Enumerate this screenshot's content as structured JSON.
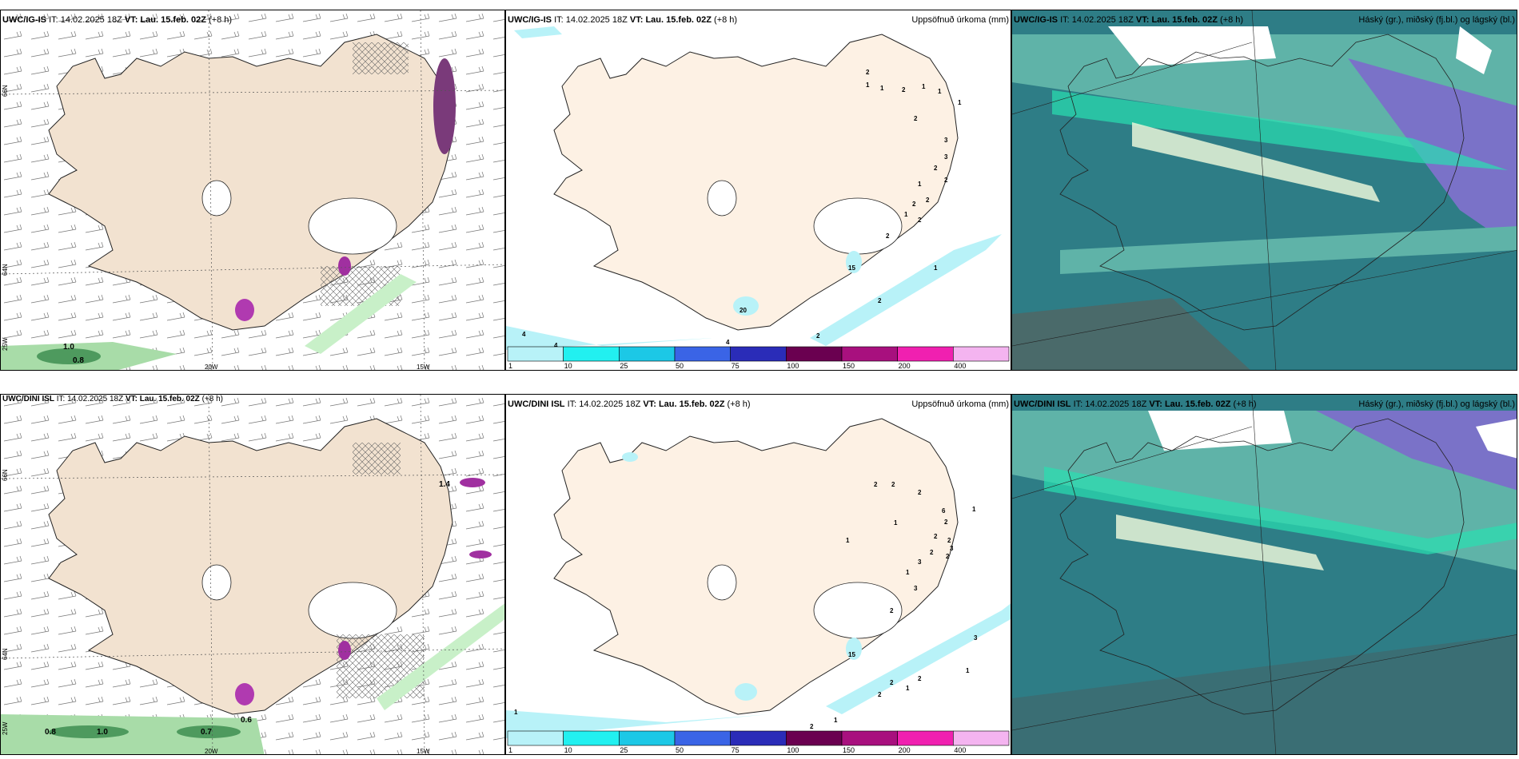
{
  "rows": [
    {
      "model": "UWC/IG-IS",
      "issue_prefix": "IT:",
      "issue_time": "14.02.2025 18Z",
      "valid_prefix": "VT:",
      "valid_time": "Lau. 15.feb. 02Z",
      "lead": "(+8 h)",
      "precip_title": "Uppsöfnuð úrkoma (mm)",
      "cloud_title": "Háský (gr.), miðský (fj.bl.) og lágský (bl.)",
      "wind_labels": [
        "1.0",
        "0.8"
      ],
      "precip_values": [
        "2",
        "1",
        "1",
        "2",
        "1",
        "1",
        "1",
        "2",
        "3",
        "3",
        "2",
        "2",
        "1",
        "2",
        "2",
        "2",
        "1",
        "2",
        "1",
        "15",
        "20",
        "2",
        "4",
        "4",
        "4",
        "2"
      ]
    },
    {
      "model": "UWC/DINI ISL",
      "issue_prefix": "IT:",
      "issue_time": "14.02.2025 18Z",
      "valid_prefix": "VT:",
      "valid_time": "Lau. 15.feb. 02Z",
      "lead": "(+8 h)",
      "precip_title": "Uppsöfnuð úrkoma (mm)",
      "cloud_title": "Háský (gr.), miðský (fj.bl.) og lágský (bl.)",
      "wind_labels": [
        "1.4",
        "0.8",
        "1.0",
        "0.7",
        "0.6"
      ],
      "precip_values": [
        "2",
        "2",
        "2",
        "1",
        "6",
        "1",
        "2",
        "1",
        "2",
        "2",
        "3",
        "2",
        "2",
        "3",
        "1",
        "3",
        "15",
        "2",
        "3",
        "2",
        "1",
        "2",
        "2",
        "1",
        "2",
        "1",
        "1"
      ]
    }
  ],
  "lon_labels": [
    "20W",
    "15W"
  ],
  "lat_labels": [
    "66N",
    "64N",
    "25W"
  ],
  "colorbar_ticks": [
    "1",
    "10",
    "25",
    "50",
    "75",
    "100",
    "150",
    "200",
    "400"
  ],
  "colorbar_colors": [
    "#b8f2f8",
    "#22f0f0",
    "#1cc8e6",
    "#3a64e6",
    "#2a2cb8",
    "#6a0050",
    "#a8107e",
    "#f020b0",
    "#f4b4f0"
  ],
  "colors": {
    "land": "#f2e2d0",
    "land_precip": "#fdf1e4",
    "sea": "#ffffff",
    "precip_light": "#b8f2f8",
    "wind_green": "#c8f0c8",
    "purple_precip": "#7a3a7a",
    "cloud_low": "#2e7d86",
    "cloud_mid": "#5fb3a8",
    "cloud_high": "#7a72c8",
    "cloud_band": "#2ae0b0"
  }
}
